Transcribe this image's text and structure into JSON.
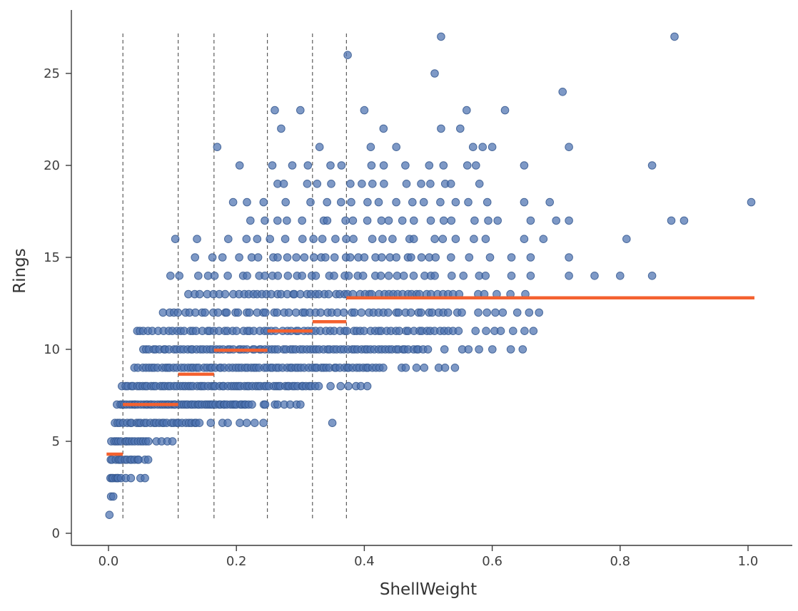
{
  "chart_data": {
    "type": "scatter",
    "title": "",
    "xlabel": "ShellWeight",
    "ylabel": "Rings",
    "xlim": [
      -0.058,
      1.069
    ],
    "ylim": [
      -0.6,
      28.4
    ],
    "grid": false,
    "legend": "none",
    "x_ticks": [
      0.0,
      0.2,
      0.4,
      0.6,
      0.8,
      1.0
    ],
    "x_tick_labels": [
      "0.0",
      "0.2",
      "0.4",
      "0.6",
      "0.8",
      "1.0"
    ],
    "y_ticks": [
      0,
      5,
      10,
      15,
      20,
      25
    ],
    "y_tick_labels": [
      "0",
      "5",
      "10",
      "15",
      "20",
      "25"
    ],
    "axis_color": "#3a3a3a",
    "tick_color": "#3f3f3f",
    "point_color": "#4c72b0",
    "point_edge_color": "#35588f",
    "point_opacity": 0.72,
    "split_line_color": "#3c3c3c",
    "split_lines_x": [
      0.0225,
      0.109,
      0.165,
      0.2485,
      0.319,
      0.372
    ],
    "step_color": "#f4612f",
    "step_segments": [
      {
        "x_start": -0.003,
        "x_end": 0.0225,
        "y": 4.3
      },
      {
        "x_start": 0.0225,
        "x_end": 0.109,
        "y": 7.0
      },
      {
        "x_start": 0.109,
        "x_end": 0.165,
        "y": 8.65
      },
      {
        "x_start": 0.165,
        "x_end": 0.2485,
        "y": 9.95
      },
      {
        "x_start": 0.2485,
        "x_end": 0.319,
        "y": 11.0
      },
      {
        "x_start": 0.319,
        "x_end": 0.372,
        "y": 11.5
      },
      {
        "x_start": 0.372,
        "x_end": 1.01,
        "y": 12.8
      }
    ],
    "scatter_runs": {
      "3": [
        [
          0.001,
          0.02,
          7
        ]
      ],
      "4": [
        [
          0.001,
          0.05,
          13
        ]
      ],
      "5": [
        [
          0.002,
          0.065,
          15
        ]
      ],
      "6": [
        [
          0.008,
          0.145,
          30
        ],
        [
          0.155,
          0.245,
          7
        ]
      ],
      "7": [
        [
          0.012,
          0.225,
          58
        ],
        [
          0.235,
          0.305,
          8
        ]
      ],
      "8": [
        [
          0.02,
          0.33,
          70
        ],
        [
          0.34,
          0.415,
          6
        ]
      ],
      "9": [
        [
          0.04,
          0.43,
          78
        ],
        [
          0.445,
          0.55,
          7
        ]
      ],
      "10": [
        [
          0.05,
          0.5,
          84
        ],
        [
          0.515,
          0.655,
          7
        ]
      ],
      "11": [
        [
          0.04,
          0.55,
          74
        ],
        [
          0.56,
          0.68,
          7
        ]
      ],
      "12": [
        [
          0.08,
          0.555,
          55
        ],
        [
          0.565,
          0.68,
          7
        ]
      ],
      "13": [
        [
          0.12,
          0.2,
          8
        ],
        [
          0.2,
          0.5,
          40
        ],
        [
          0.5,
          0.555,
          6
        ],
        [
          0.565,
          0.655,
          5
        ]
      ],
      "14": [
        [
          0.09,
          0.2,
          6
        ],
        [
          0.2,
          0.52,
          26
        ],
        [
          0.53,
          0.6,
          4
        ]
      ],
      "15": [
        [
          0.13,
          0.25,
          6
        ],
        [
          0.25,
          0.52,
          22
        ],
        [
          0.53,
          0.6,
          3
        ]
      ],
      "16": [
        [
          0.1,
          0.25,
          5
        ],
        [
          0.25,
          0.55,
          16
        ],
        [
          0.56,
          0.6,
          2
        ]
      ],
      "17": [
        [
          0.2,
          0.3,
          4
        ],
        [
          0.3,
          0.55,
          13
        ],
        [
          0.56,
          0.62,
          3
        ]
      ],
      "18": [
        [
          0.17,
          0.3,
          4
        ],
        [
          0.3,
          0.55,
          11
        ],
        [
          0.56,
          0.6,
          2
        ]
      ],
      "19": [
        [
          0.25,
          0.45,
          9
        ],
        [
          0.46,
          0.55,
          5
        ]
      ],
      "20": [
        [
          0.24,
          0.45,
          7
        ],
        [
          0.46,
          0.6,
          5
        ]
      ]
    },
    "scatter_points": {
      "1": [
        0.0015
      ],
      "2": [
        0.004,
        0.0075
      ],
      "3": [
        0.027,
        0.035,
        0.05,
        0.057
      ],
      "4": [
        0.057,
        0.062
      ],
      "5": [
        0.075,
        0.083,
        0.092,
        0.1
      ],
      "6": [
        0.35
      ],
      "14": [
        0.63,
        0.66,
        0.72,
        0.76,
        0.8,
        0.85
      ],
      "15": [
        0.63,
        0.66,
        0.72
      ],
      "16": [
        0.65,
        0.68,
        0.81
      ],
      "17": [
        0.66,
        0.7,
        0.72,
        0.88,
        0.9
      ],
      "18": [
        0.65,
        0.69,
        1.005
      ],
      "19": [
        0.58
      ],
      "20": [
        0.205,
        0.65,
        0.85
      ],
      "21": [
        0.17,
        0.33,
        0.41,
        0.45,
        0.57,
        0.585,
        0.6,
        0.72
      ],
      "22": [
        0.27,
        0.43,
        0.52,
        0.55
      ],
      "23": [
        0.26,
        0.3,
        0.4,
        0.56,
        0.62
      ],
      "24": [
        0.71
      ],
      "25": [
        0.51
      ],
      "26": [
        0.374
      ],
      "27": [
        0.52,
        0.885
      ]
    }
  }
}
